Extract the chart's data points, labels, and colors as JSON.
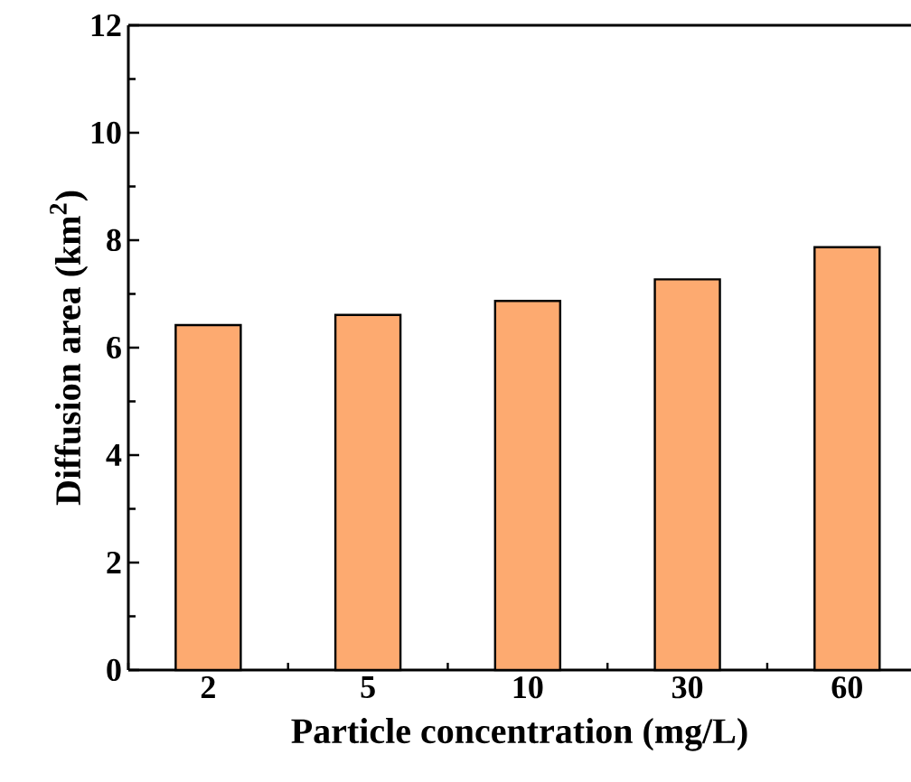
{
  "chart_data": {
    "type": "bar",
    "xlabel": "Particle concentration (mg/L)",
    "ylabel": "Diffusion area (km$^{2}$)",
    "categories": [
      "2",
      "5",
      "10",
      "30",
      "60"
    ],
    "values": [
      6.42,
      6.61,
      6.87,
      7.27,
      7.87
    ],
    "color": "#fdaa70",
    "ylim": [
      0,
      12
    ],
    "yticks": [
      0,
      2,
      4,
      6,
      8,
      10,
      12
    ],
    "grid": false
  }
}
